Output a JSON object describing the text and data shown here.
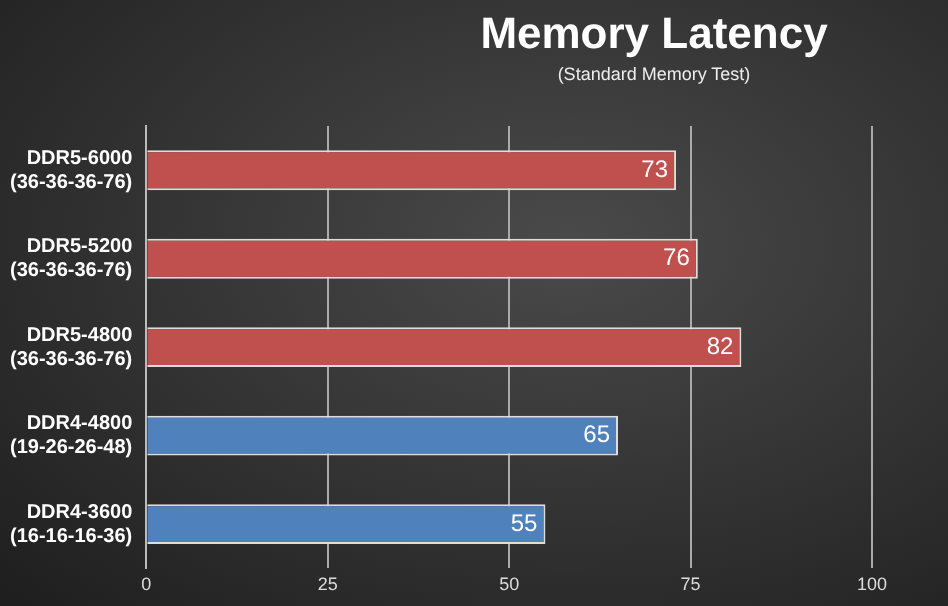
{
  "chart_data": {
    "type": "bar",
    "orientation": "horizontal",
    "title": "Memory Latency",
    "subtitle": "(Standard Memory Test)",
    "categories": [
      "DDR5-6000\n(36-36-36-76)",
      "DDR5-5200\n(36-36-36-76)",
      "DDR5-4800\n(36-36-36-76)",
      "DDR4-4800\n(19-26-26-48)",
      "DDR4-3600\n(16-16-16-36)"
    ],
    "values": [
      73,
      76,
      82,
      65,
      55
    ],
    "colors": [
      "#c0504d",
      "#c0504d",
      "#c0504d",
      "#4f81bd",
      "#4f81bd"
    ],
    "xlim": [
      0,
      100
    ],
    "xticks": [
      0,
      25,
      50,
      75,
      100
    ],
    "grid": "x",
    "data_labels": true,
    "legend": false
  }
}
